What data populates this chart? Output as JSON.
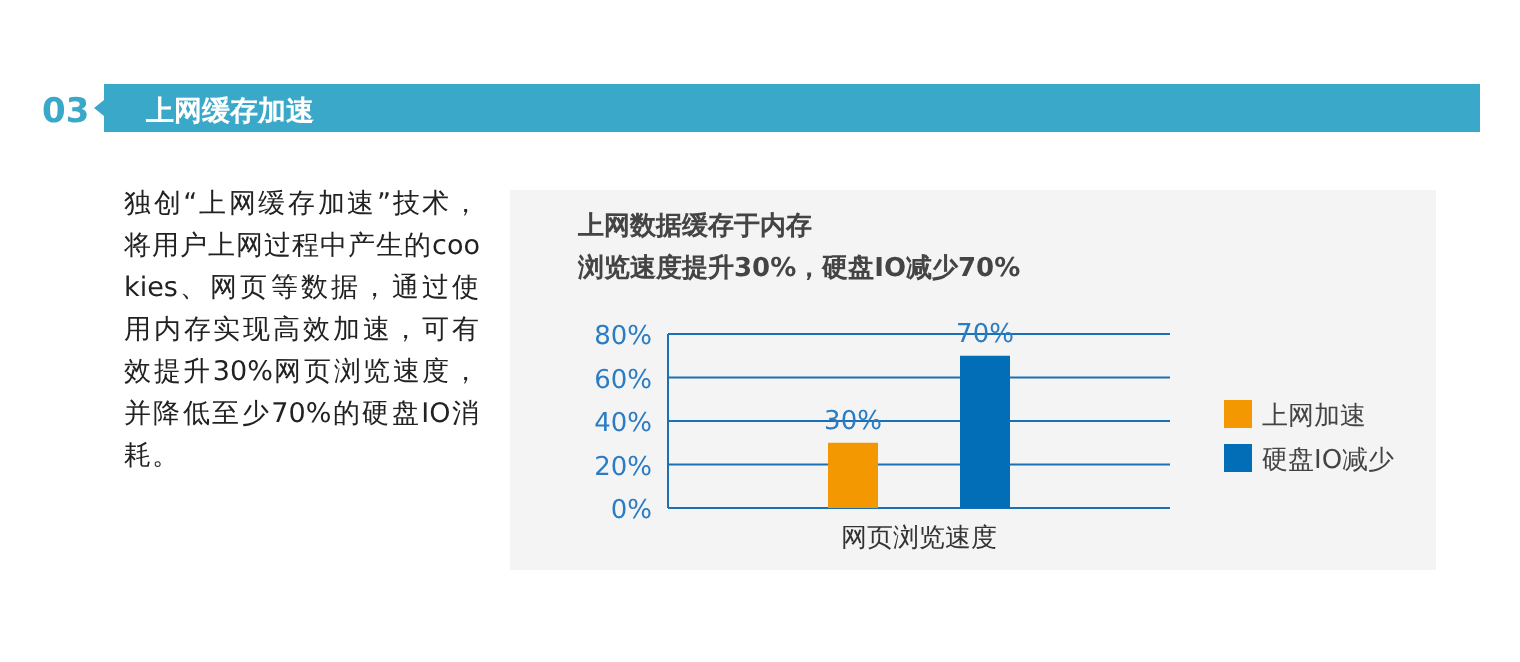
{
  "chart_data": {
    "type": "bar",
    "title": "上网数据缓存于内存",
    "subtitle": "浏览速度提升30%，硬盘IO减少70%",
    "annotations": [
      "03",
      "上网缓存加速",
      "独创“上网缓存加速”技术，将用户上网过程中产生的cookies、网页等数据，通过使用内存实现高效加速，可有效提升30%网页浏览速度，并降低至少70%的硬盘IO消耗。"
    ],
    "categories": [
      "网页浏览速度"
    ],
    "series": [
      {
        "name": "上网加速",
        "color": "#f39800",
        "values": [
          30
        ],
        "value_labels": [
          "30%"
        ]
      },
      {
        "name": "硬盘IO减少",
        "color": "#036eb8",
        "values": [
          70
        ],
        "value_labels": [
          "70%"
        ]
      }
    ],
    "ylim": [
      0,
      80
    ],
    "yticks": [
      {
        "value": 0,
        "label": "0%"
      },
      {
        "value": 20,
        "label": "20%"
      },
      {
        "value": 40,
        "label": "40%"
      },
      {
        "value": 60,
        "label": "60%"
      },
      {
        "value": 80,
        "label": "80%"
      }
    ],
    "grid": "y",
    "legend": "right"
  }
}
